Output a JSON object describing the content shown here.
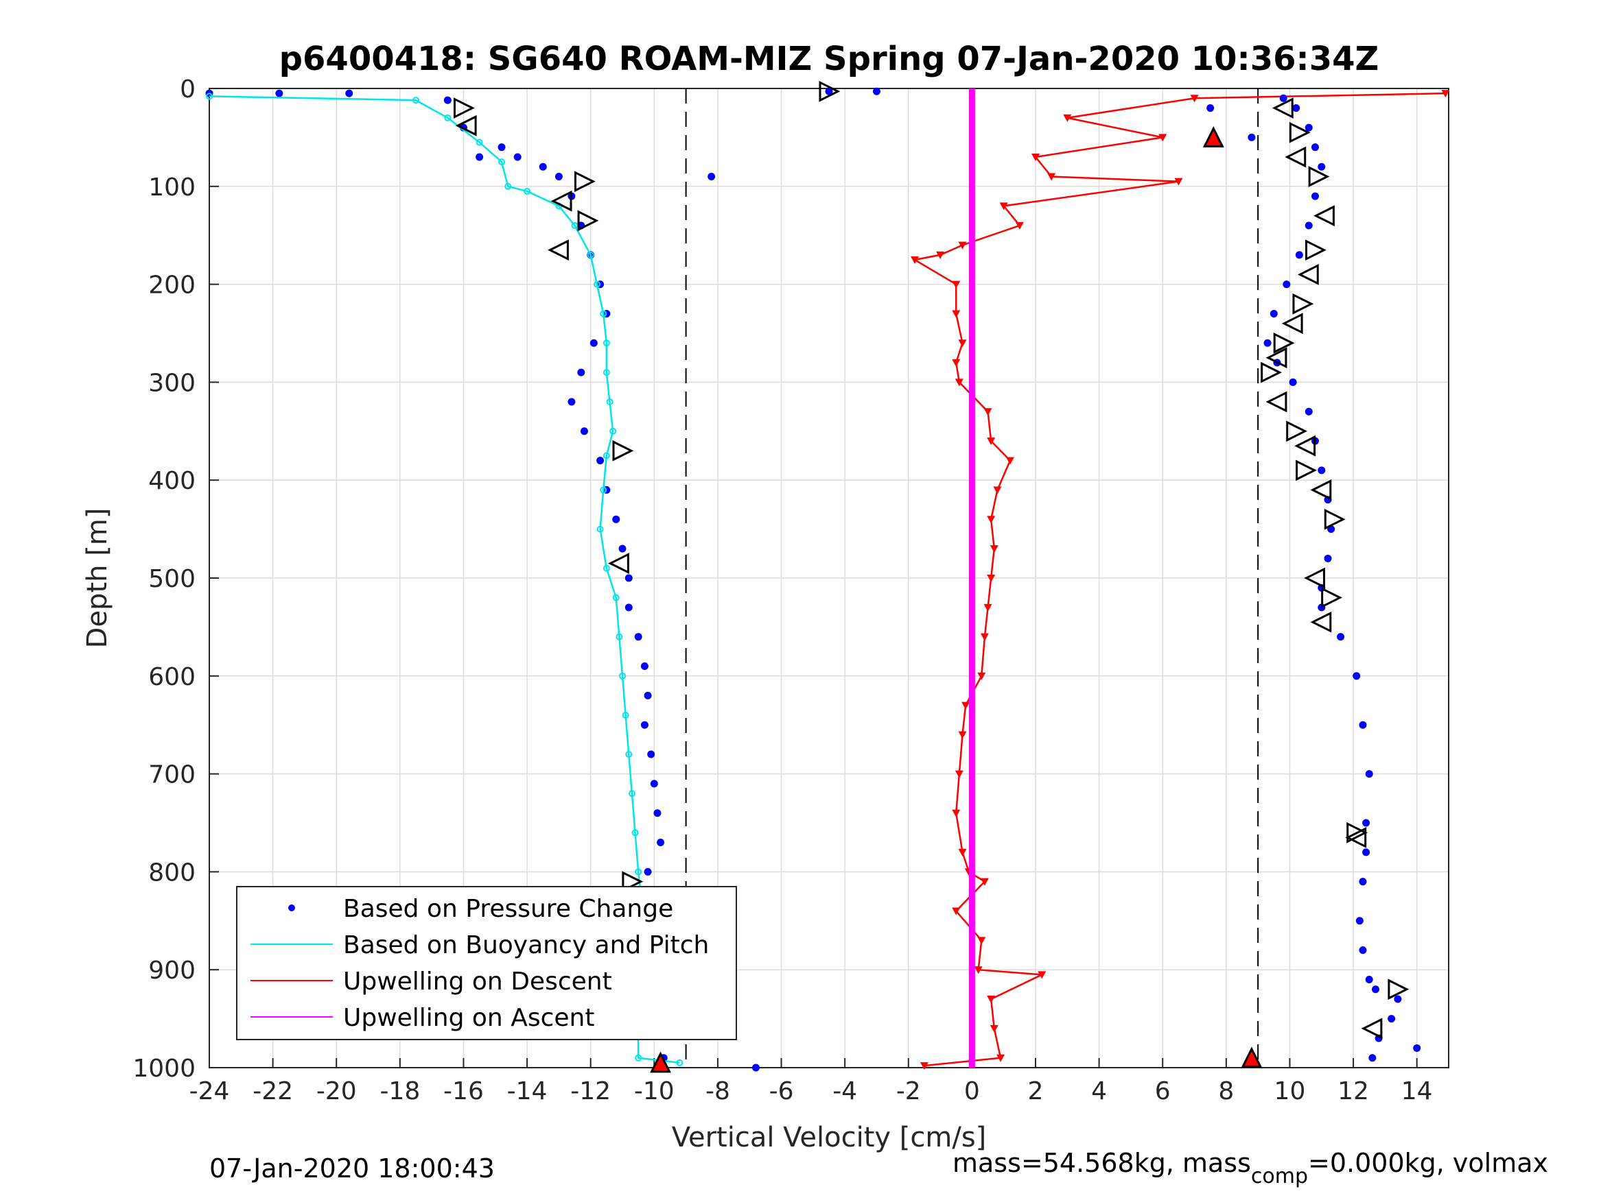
{
  "chart_data": {
    "type": "scatter",
    "title": "p6400418: SG640 ROAM-MIZ Spring 07-Jan-2020 10:36:34Z",
    "xlabel": "Vertical Velocity [cm/s]",
    "ylabel": "Depth [m]",
    "xlim": [
      -24,
      15
    ],
    "ylim": [
      1000,
      0
    ],
    "y_reversed": true,
    "grid": true,
    "xticks": [
      "-24",
      "-22",
      "-20",
      "-18",
      "-16",
      "-14",
      "-12",
      "-10",
      "-8",
      "-6",
      "-4",
      "-2",
      "0",
      "2",
      "4",
      "6",
      "8",
      "10",
      "12",
      "14"
    ],
    "yticks": [
      "0",
      "100",
      "200",
      "300",
      "400",
      "500",
      "600",
      "700",
      "800",
      "900",
      "1000"
    ],
    "legend_position": "bottom-left",
    "reference_lines": [
      {
        "x": -9,
        "style": "dashed",
        "color": "#000000"
      },
      {
        "x": 9,
        "style": "dashed",
        "color": "#000000"
      }
    ],
    "series": [
      {
        "name": "Based on Pressure Change",
        "kind": "dots",
        "color": "#0000ff",
        "x": [
          -24,
          -21.8,
          -19.6,
          -16.5,
          -16,
          -15.5,
          -14.8,
          -14.3,
          -13.5,
          -13,
          -12.6,
          -12.3,
          -12,
          -11.7,
          -11.5,
          -11.9,
          -12.3,
          -12.6,
          -12.2,
          -11.7,
          -11.5,
          -11.2,
          -11,
          -10.8,
          -10.8,
          -10.5,
          -10.3,
          -10.2,
          -10.3,
          -10.1,
          -10,
          -9.9,
          -9.8,
          -10.2,
          -10.4,
          -10.6,
          -10.3,
          -10.1,
          -9.8,
          -9.7,
          -9.7,
          -8.2
        ],
        "y": [
          5,
          5,
          5,
          12,
          40,
          70,
          60,
          70,
          80,
          90,
          110,
          140,
          170,
          200,
          230,
          260,
          290,
          320,
          350,
          380,
          410,
          440,
          470,
          500,
          530,
          560,
          590,
          620,
          650,
          680,
          710,
          740,
          770,
          800,
          820,
          850,
          870,
          900,
          930,
          960,
          990,
          90
        ]
      },
      {
        "name": "Based on Pressure Change (ascent)",
        "kind": "dots",
        "color": "#0000ff",
        "x": [
          -4.5,
          -3,
          -6.8,
          7.5,
          8.8,
          9.8,
          10.2,
          10.6,
          10.8,
          11,
          10.8,
          10.6,
          10.3,
          9.9,
          9.5,
          9.3,
          9.6,
          10.1,
          10.6,
          10.8,
          11,
          11.2,
          11.3,
          11.2,
          11,
          11,
          11.6,
          12.1,
          12.3,
          12.5,
          12.4,
          12.4,
          12.3,
          12.2,
          12.3,
          12.5,
          12.7,
          13.4,
          13.2,
          12.8,
          12.6,
          14
        ],
        "y": [
          3,
          3,
          1000,
          20,
          50,
          10,
          20,
          40,
          60,
          80,
          110,
          140,
          170,
          200,
          230,
          260,
          280,
          300,
          330,
          360,
          390,
          420,
          450,
          480,
          510,
          530,
          560,
          600,
          650,
          700,
          750,
          780,
          810,
          850,
          880,
          910,
          920,
          930,
          950,
          970,
          990,
          980
        ]
      },
      {
        "name": "Based on Buoyancy and Pitch",
        "kind": "line",
        "color": "#00e6e6",
        "x": [
          -24,
          -17.5,
          -16.5,
          -15.5,
          -14.8,
          -14.6,
          -14,
          -13,
          -12.5,
          -12,
          -11.8,
          -11.6,
          -11.5,
          -11.5,
          -11.4,
          -11.3,
          -11.5,
          -11.6,
          -11.7,
          -11.5,
          -11.2,
          -11.1,
          -11,
          -10.9,
          -10.8,
          -10.7,
          -10.6,
          -10.5,
          -10.4,
          -10.4,
          -10.5,
          -10.7,
          -10.8,
          -10.6,
          -10.5,
          -10.5,
          -9.2
        ],
        "y": [
          8,
          12,
          30,
          55,
          75,
          100,
          105,
          120,
          140,
          170,
          200,
          230,
          260,
          290,
          320,
          350,
          375,
          410,
          450,
          490,
          520,
          560,
          600,
          640,
          680,
          720,
          760,
          800,
          830,
          860,
          880,
          900,
          920,
          940,
          960,
          990,
          995
        ]
      },
      {
        "name": "Upwelling on Descent",
        "kind": "line-triangles",
        "color": "#ff0000",
        "x": [
          14.9,
          7,
          3,
          6,
          2,
          2.5,
          6.5,
          1,
          1.5,
          -0.3,
          -1,
          -1.8,
          -0.5,
          -0.5,
          -0.3,
          -0.5,
          -0.4,
          0.5,
          0.6,
          1.2,
          0.8,
          0.6,
          0.7,
          0.6,
          0.5,
          0.4,
          0.3,
          -0.2,
          -0.3,
          -0.4,
          -0.5,
          -0.3,
          -0.1,
          0.4,
          -0.5,
          0.3,
          0.2,
          2.2,
          0.6,
          0.7,
          0.9,
          -1.5
        ],
        "y": [
          5,
          10,
          30,
          50,
          70,
          90,
          95,
          120,
          140,
          160,
          170,
          175,
          200,
          230,
          260,
          280,
          300,
          330,
          360,
          380,
          410,
          440,
          470,
          500,
          530,
          560,
          600,
          630,
          660,
          700,
          740,
          780,
          800,
          810,
          840,
          870,
          900,
          905,
          930,
          960,
          990,
          998
        ]
      },
      {
        "name": "Upwelling on Ascent",
        "kind": "line",
        "color": "#ff00ff",
        "x": [
          0,
          0,
          0,
          0,
          0,
          0,
          0,
          0,
          0,
          0,
          0
        ],
        "y": [
          0,
          100,
          200,
          300,
          400,
          500,
          600,
          700,
          800,
          900,
          1000
        ]
      }
    ],
    "markers": {
      "descent_triangles_black": {
        "x": [
          -16,
          -15.9,
          -12.2,
          -12.9,
          -12.1,
          -13,
          -11,
          -11.1,
          -10.7,
          -10.9,
          -10.2
        ],
        "y": [
          20,
          38,
          95,
          115,
          135,
          165,
          370,
          485,
          810,
          865,
          895
        ]
      },
      "ascent_triangles_black": {
        "x": [
          -4.5,
          9.8,
          10.3,
          10.2,
          10.9,
          11.1,
          10.8,
          10.6,
          10.4,
          10.1,
          9.8,
          9.6,
          9.4,
          9.6,
          10.2,
          10.5,
          10.5,
          11,
          11.4,
          10.8,
          11.3,
          11,
          12.1,
          12.1,
          13.4,
          12.6
        ],
        "y": [
          3,
          20,
          45,
          70,
          90,
          130,
          165,
          190,
          220,
          240,
          260,
          275,
          290,
          320,
          350,
          365,
          390,
          410,
          440,
          500,
          520,
          545,
          760,
          765,
          920,
          960
        ]
      },
      "turn_triangles_red": {
        "x": [
          -9.8,
          7.6,
          8.8
        ],
        "y": [
          995,
          50,
          990
        ]
      }
    }
  },
  "footer": {
    "left": "07-Jan-2020 18:00:43",
    "right_main": "mass=54.568kg, mass",
    "right_sub": "comp",
    "right_tail": "=0.000kg, volmax"
  }
}
